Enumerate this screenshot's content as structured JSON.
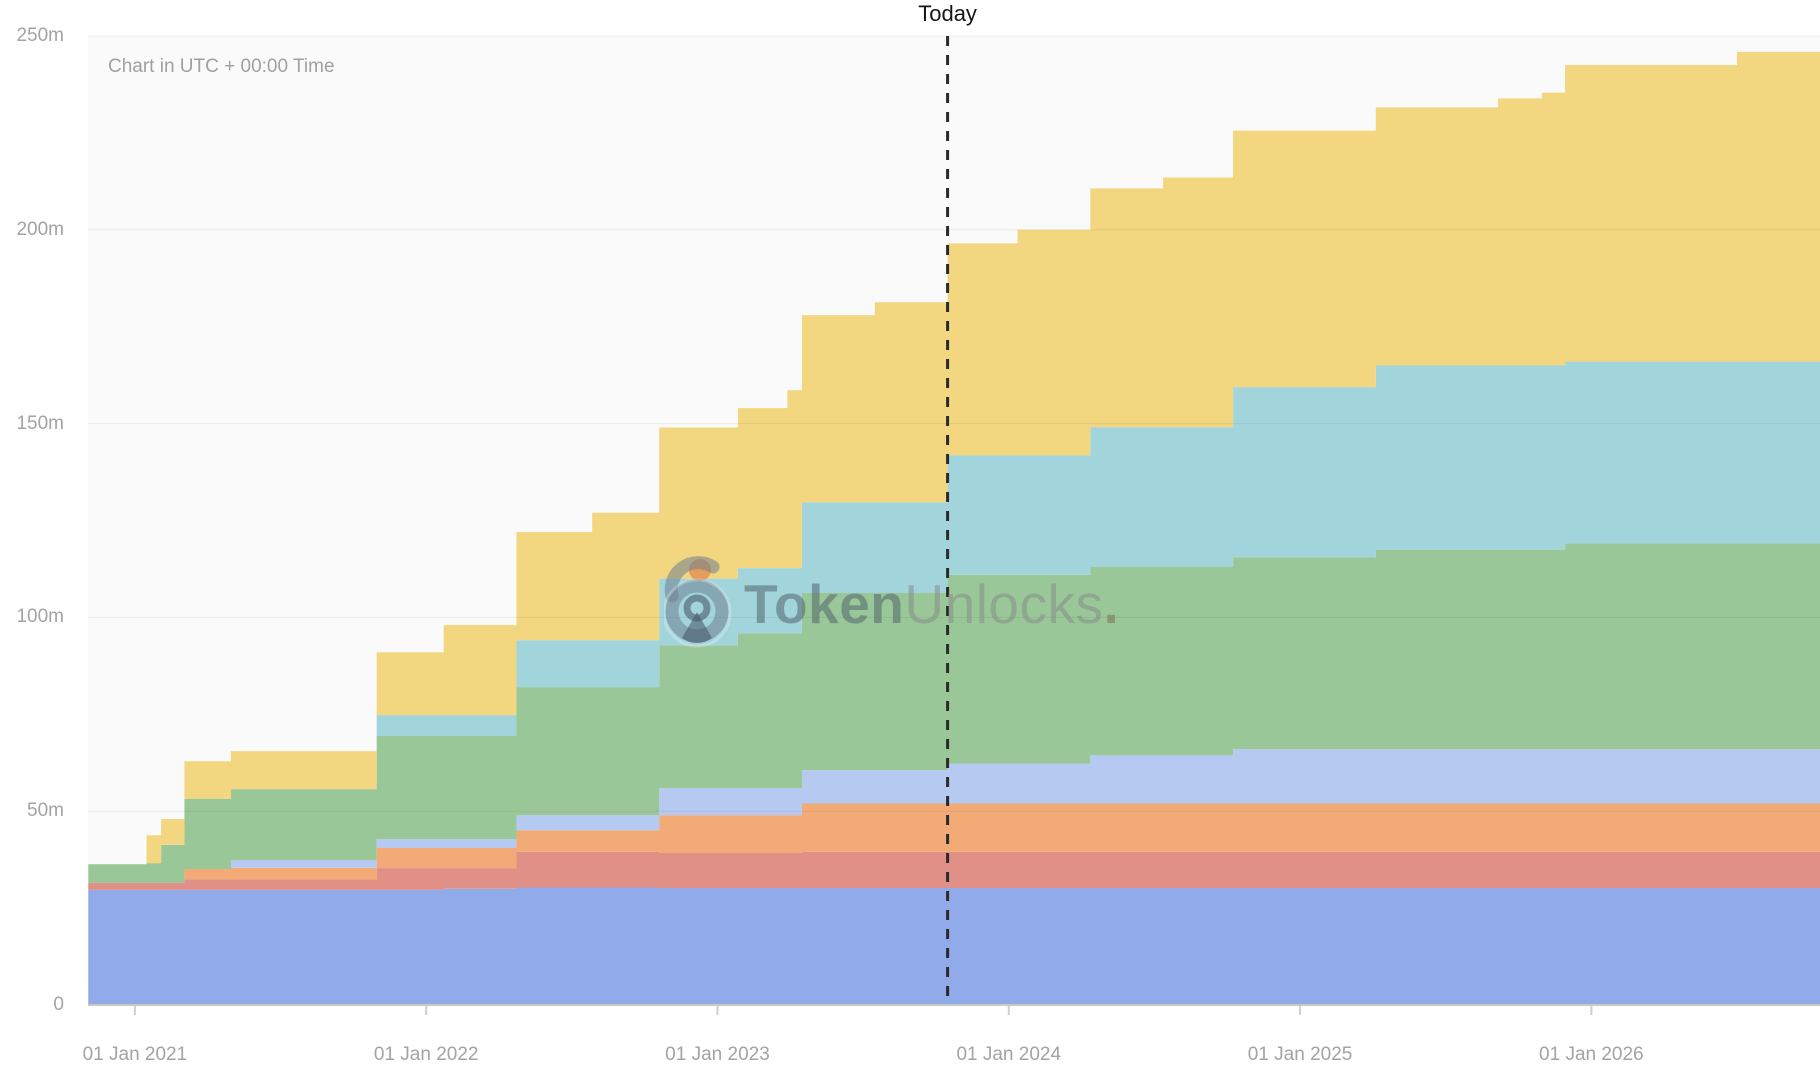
{
  "page": {
    "today_label": "Today",
    "timezone_note": "Chart in UTC + 00:00 Time"
  },
  "watermark": {
    "icon": "open-lock-icon",
    "bold_text": "Token",
    "light_text": "Unlocks",
    "period": "."
  },
  "colors": {
    "plot_background": "#fafafa",
    "gridline": "rgba(0,0,0,0.06)",
    "baseline": "#c9c9c9",
    "tick_mark": "#cfcfcf",
    "axis_text": "#a3a3a3",
    "today_line": "#2a2a2a"
  },
  "chart_data": {
    "type": "area",
    "variant": "stacked-step-area",
    "title": "",
    "timezone_note": "Chart in UTC + 00:00 Time",
    "unit": "tokens (m = millions)",
    "today_marker": {
      "x": 2023.79,
      "label": "Today"
    },
    "x_axis": {
      "domain": [
        2020.839,
        2026.785
      ],
      "ticks": [
        {
          "x": 2021,
          "label": "01 Jan 2021"
        },
        {
          "x": 2022,
          "label": "01 Jan 2022"
        },
        {
          "x": 2023,
          "label": "01 Jan 2023"
        },
        {
          "x": 2024,
          "label": "01 Jan 2024"
        },
        {
          "x": 2025,
          "label": "01 Jan 2025"
        },
        {
          "x": 2026,
          "label": "01 Jan 2026"
        }
      ]
    },
    "y_axis": {
      "min": 0,
      "max": 250,
      "ticks": [
        {
          "y": 0,
          "label": "0"
        },
        {
          "y": 50,
          "label": "50m"
        },
        {
          "y": 100,
          "label": "100m"
        },
        {
          "y": 150,
          "label": "150m"
        },
        {
          "y": 200,
          "label": "200m"
        },
        {
          "y": 250,
          "label": "250m"
        }
      ],
      "grid": true
    },
    "legend": "none",
    "breakpoints": [
      2020.84,
      2021.04,
      2021.09,
      2021.17,
      2021.33,
      2021.83,
      2022.06,
      2022.31,
      2022.57,
      2022.8,
      2023.07,
      2023.24,
      2023.29,
      2023.54,
      2023.79,
      2024.03,
      2024.28,
      2024.53,
      2024.77,
      2025.26,
      2025.68,
      2025.83,
      2025.91,
      2026.5,
      2026.79
    ],
    "series_note": "values are cumulative stack tops in millions of tokens, bottom band first",
    "series": [
      {
        "name": "allocation-blue",
        "color": "#91aaea",
        "tops": [
          29.7,
          29.7,
          29.7,
          29.7,
          29.7,
          29.7,
          30.0,
          30.3,
          30.3,
          30.2,
          30.2,
          30.2,
          30.2,
          30.2,
          30.2,
          30.2,
          30.2,
          30.2,
          30.2,
          30.2,
          30.2,
          30.2,
          30.2,
          30.2,
          30.2
        ]
      },
      {
        "name": "allocation-salmon",
        "color": "#e09087",
        "tops": [
          31.5,
          31.5,
          31.5,
          32.4,
          32.4,
          35.3,
          35.3,
          39.5,
          39.5,
          39.2,
          39.2,
          39.2,
          39.5,
          39.5,
          39.5,
          39.5,
          39.5,
          39.5,
          39.5,
          39.5,
          39.5,
          39.5,
          39.5,
          39.5,
          39.5
        ]
      },
      {
        "name": "allocation-orange",
        "color": "#f2aa76",
        "tops": [
          31.5,
          31.5,
          31.5,
          35.1,
          35.4,
          40.5,
          40.5,
          45.1,
          45.1,
          49.0,
          49.0,
          49.0,
          52.0,
          52.0,
          52.0,
          52.0,
          52.0,
          52.0,
          52.0,
          52.0,
          52.0,
          52.0,
          52.0,
          52.0,
          52.0
        ]
      },
      {
        "name": "allocation-lavender",
        "color": "#b6c9f1",
        "tops": [
          31.5,
          31.5,
          31.5,
          35.1,
          37.4,
          42.8,
          42.8,
          49.0,
          49.0,
          56.0,
          56.0,
          56.0,
          60.6,
          60.6,
          62.3,
          62.3,
          64.4,
          64.4,
          66.0,
          66.0,
          66.0,
          66.0,
          66.0,
          66.0,
          66.0
        ]
      },
      {
        "name": "allocation-green",
        "color": "#9ac798",
        "tops": [
          36.3,
          36.6,
          41.3,
          53.2,
          55.7,
          69.4,
          69.4,
          82.0,
          82.0,
          92.8,
          95.9,
          95.9,
          106.3,
          106.3,
          111.0,
          111.0,
          113.0,
          113.0,
          115.5,
          117.5,
          117.5,
          117.5,
          119.1,
          119.1,
          119.1
        ]
      },
      {
        "name": "allocation-teal",
        "color": "#a2d4db",
        "tops": [
          36.3,
          36.6,
          41.3,
          53.2,
          55.7,
          74.8,
          74.8,
          94.1,
          94.1,
          110.0,
          112.7,
          112.7,
          129.7,
          129.7,
          141.8,
          141.8,
          149.1,
          149.1,
          159.4,
          165.0,
          165.0,
          165.0,
          166.0,
          166.0,
          166.0
        ]
      },
      {
        "name": "allocation-yellow",
        "color": "#f2d680",
        "tops": [
          36.3,
          43.8,
          48.0,
          62.9,
          65.5,
          91.0,
          98.0,
          122.0,
          127.0,
          149.0,
          154.0,
          158.6,
          178.0,
          181.3,
          196.5,
          200.0,
          210.7,
          213.5,
          225.6,
          231.6,
          233.9,
          235.4,
          242.5,
          245.9,
          245.9
        ]
      }
    ]
  }
}
